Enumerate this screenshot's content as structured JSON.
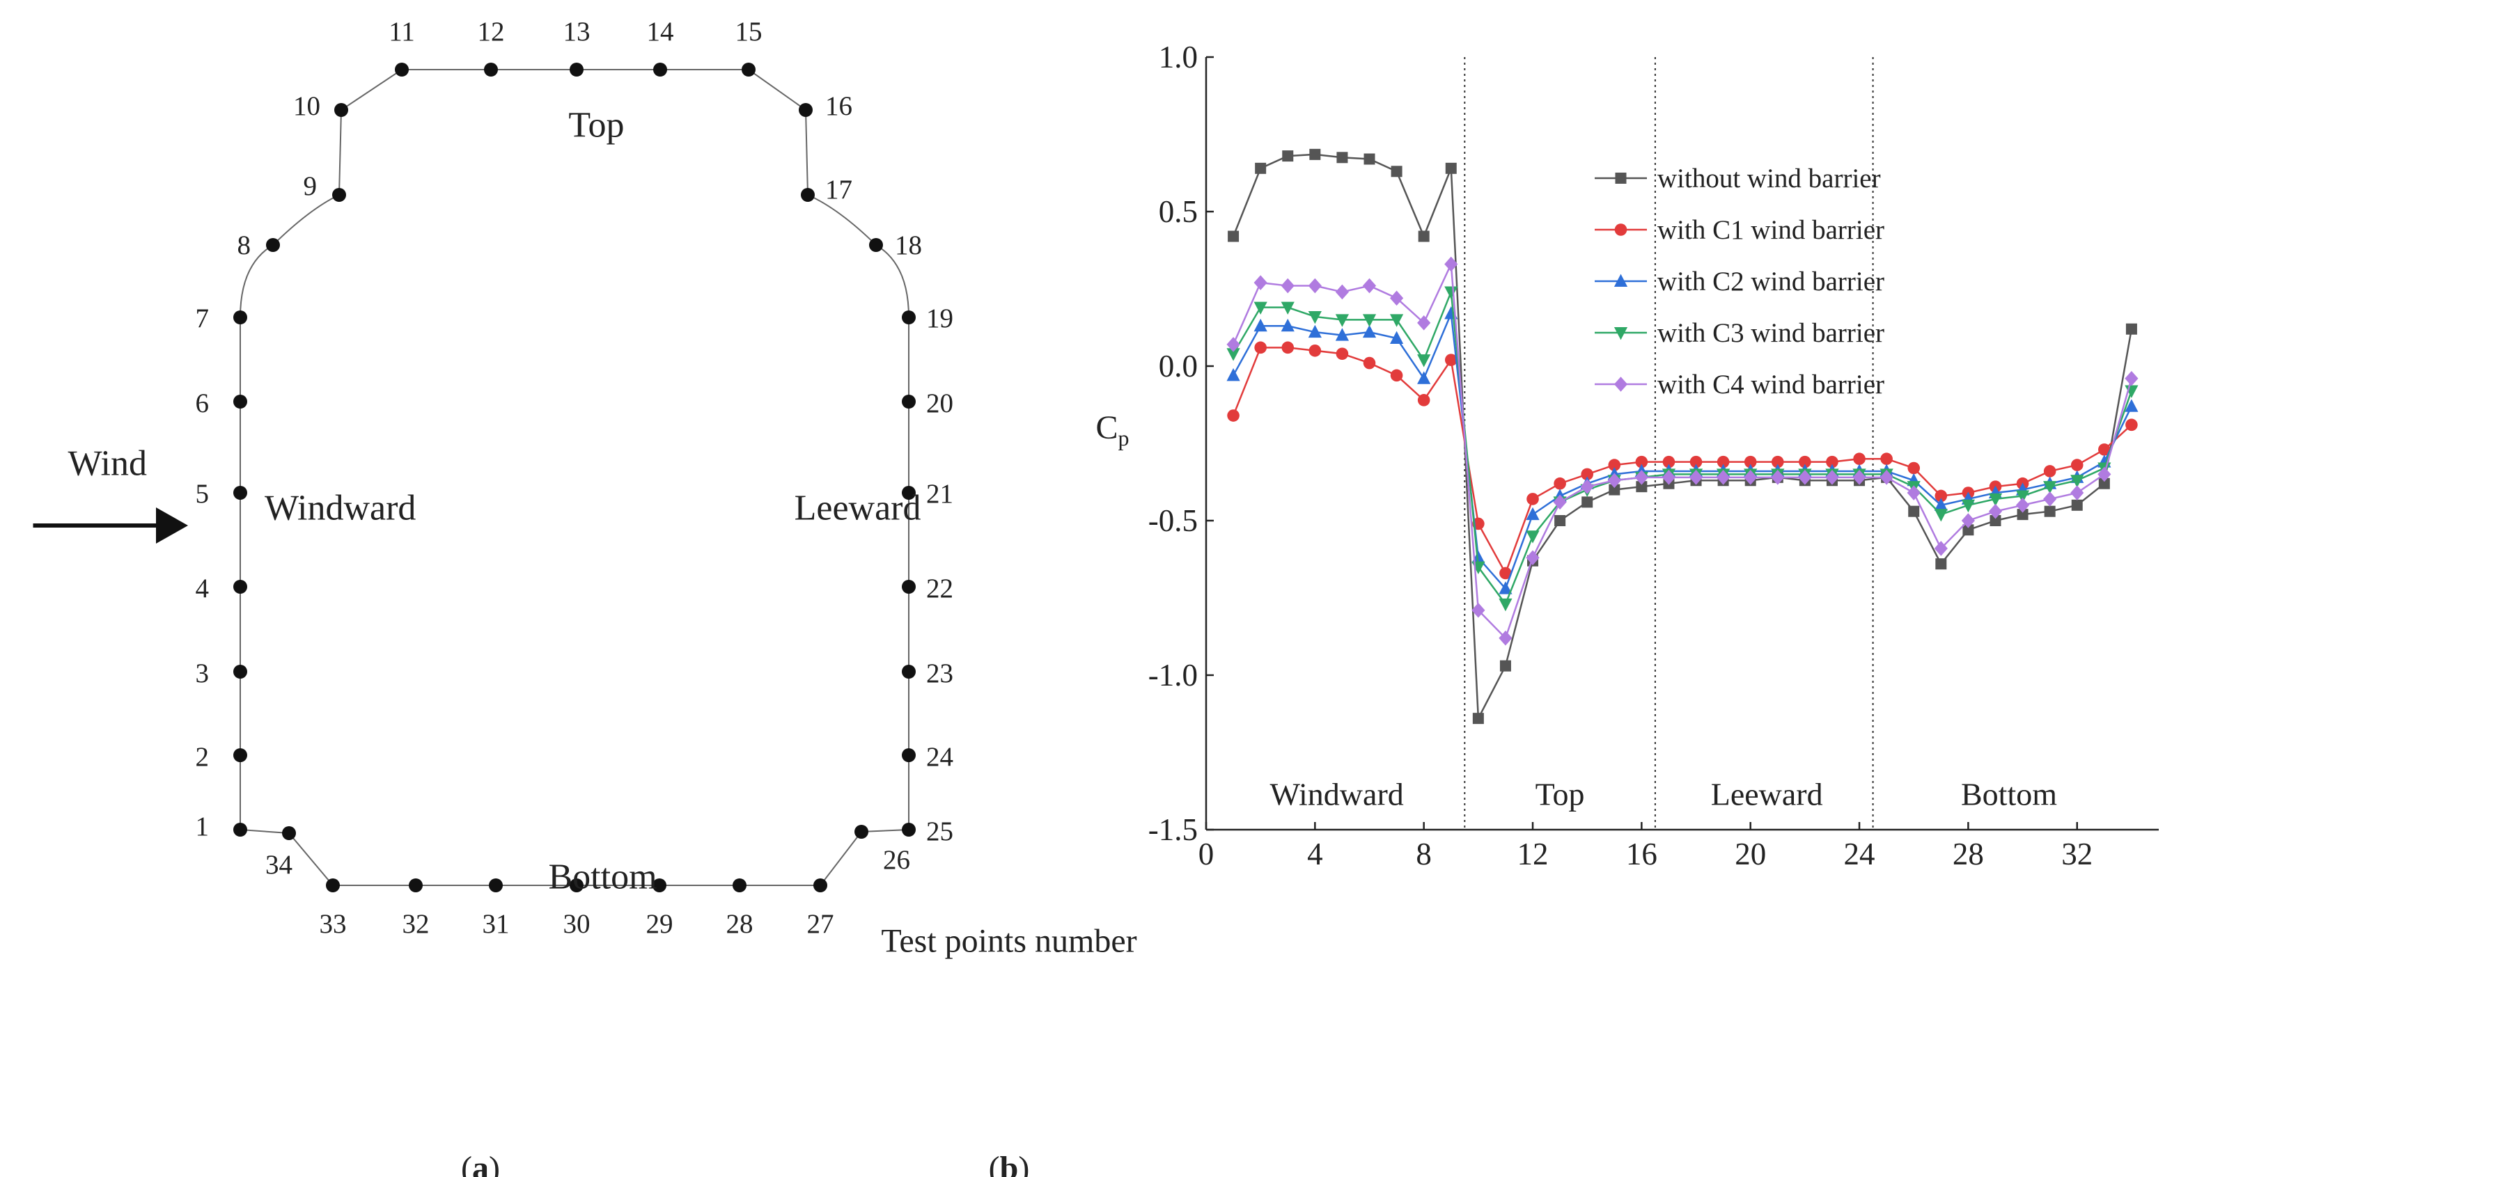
{
  "panel_a": {
    "sides": {
      "top": "Top",
      "bottom": "Bottom",
      "windward": "Windward",
      "leeward": "Leeward",
      "wind": "Wind"
    },
    "points": [
      "1",
      "2",
      "3",
      "4",
      "5",
      "6",
      "7",
      "8",
      "9",
      "10",
      "11",
      "12",
      "13",
      "14",
      "15",
      "16",
      "17",
      "18",
      "19",
      "20",
      "21",
      "22",
      "23",
      "24",
      "25",
      "26",
      "27",
      "28",
      "29",
      "30",
      "31",
      "32",
      "33",
      "34"
    ],
    "wind_arrow_icon": "arrow-right-icon",
    "caption_prefix": "(",
    "caption_letter": "a",
    "caption_suffix": ")"
  },
  "panel_b": {
    "caption_prefix": "(",
    "caption_letter": "b",
    "caption_suffix": ")"
  },
  "chart_data": {
    "type": "line",
    "xlabel": "Test points number",
    "ylabel": "C",
    "ylabel_sub": "p",
    "xlim": [
      0,
      35
    ],
    "ylim": [
      -1.5,
      1.0
    ],
    "xticks": [
      0,
      4,
      8,
      12,
      16,
      20,
      24,
      28,
      32
    ],
    "xtick_labels": [
      "0",
      "4",
      "8",
      "12",
      "16",
      "20",
      "24",
      "28",
      "32"
    ],
    "yticks": [
      1.0,
      0.5,
      0.0,
      -0.5,
      -1.0,
      -1.5
    ],
    "ytick_labels": [
      "1.0",
      "0.5",
      "0.0",
      "-0.5",
      "-1.0",
      "-1.5"
    ],
    "dividers": [
      9.5,
      16.5,
      24.5
    ],
    "regions": [
      {
        "label": "Windward",
        "x": 4.8
      },
      {
        "label": "Top",
        "x": 13.0
      },
      {
        "label": "Leeward",
        "x": 20.6
      },
      {
        "label": "Bottom",
        "x": 29.5
      }
    ],
    "legend_position": "top-right",
    "x": [
      1,
      2,
      3,
      4,
      5,
      6,
      7,
      8,
      9,
      10,
      11,
      12,
      13,
      14,
      15,
      16,
      17,
      18,
      19,
      20,
      21,
      22,
      23,
      24,
      25,
      26,
      27,
      28,
      29,
      30,
      31,
      32,
      33,
      34
    ],
    "series": [
      {
        "name": "without wind barrier",
        "color": "#555555",
        "marker": "square",
        "values": [
          0.42,
          0.64,
          0.68,
          0.685,
          0.675,
          0.67,
          0.63,
          0.42,
          0.64,
          -1.14,
          -0.97,
          -0.63,
          -0.5,
          -0.44,
          -0.4,
          -0.39,
          -0.38,
          -0.37,
          -0.37,
          -0.37,
          -0.36,
          -0.37,
          -0.37,
          -0.37,
          -0.36,
          -0.47,
          -0.64,
          -0.53,
          -0.5,
          -0.48,
          -0.47,
          -0.45,
          -0.38,
          0.12
        ]
      },
      {
        "name": "with C1 wind barrier",
        "color": "#e23b3b",
        "marker": "circle",
        "values": [
          -0.16,
          0.06,
          0.06,
          0.05,
          0.04,
          0.01,
          -0.03,
          -0.11,
          0.02,
          -0.51,
          -0.67,
          -0.43,
          -0.38,
          -0.35,
          -0.32,
          -0.31,
          -0.31,
          -0.31,
          -0.31,
          -0.31,
          -0.31,
          -0.31,
          -0.31,
          -0.3,
          -0.3,
          -0.33,
          -0.42,
          -0.41,
          -0.39,
          -0.38,
          -0.34,
          -0.32,
          -0.27,
          -0.19
        ]
      },
      {
        "name": "with C2 wind barrier",
        "color": "#2e6fd8",
        "marker": "triangle-up",
        "values": [
          -0.03,
          0.13,
          0.13,
          0.11,
          0.1,
          0.11,
          0.09,
          -0.04,
          0.17,
          -0.62,
          -0.72,
          -0.48,
          -0.42,
          -0.38,
          -0.35,
          -0.34,
          -0.34,
          -0.34,
          -0.34,
          -0.34,
          -0.34,
          -0.34,
          -0.34,
          -0.34,
          -0.34,
          -0.37,
          -0.45,
          -0.43,
          -0.41,
          -0.4,
          -0.38,
          -0.36,
          -0.31,
          -0.13
        ]
      },
      {
        "name": "with C3 wind barrier",
        "color": "#2fa866",
        "marker": "triangle-down",
        "values": [
          0.04,
          0.19,
          0.19,
          0.16,
          0.15,
          0.15,
          0.15,
          0.02,
          0.24,
          -0.65,
          -0.77,
          -0.55,
          -0.44,
          -0.4,
          -0.37,
          -0.36,
          -0.35,
          -0.35,
          -0.35,
          -0.35,
          -0.35,
          -0.35,
          -0.35,
          -0.35,
          -0.35,
          -0.39,
          -0.48,
          -0.45,
          -0.43,
          -0.42,
          -0.39,
          -0.37,
          -0.33,
          -0.08
        ]
      },
      {
        "name": "with C4 wind barrier",
        "color": "#b07be0",
        "marker": "diamond",
        "values": [
          0.07,
          0.27,
          0.26,
          0.26,
          0.24,
          0.26,
          0.22,
          0.14,
          0.33,
          -0.79,
          -0.88,
          -0.62,
          -0.44,
          -0.39,
          -0.37,
          -0.36,
          -0.36,
          -0.36,
          -0.36,
          -0.36,
          -0.36,
          -0.36,
          -0.36,
          -0.36,
          -0.36,
          -0.41,
          -0.59,
          -0.5,
          -0.47,
          -0.45,
          -0.43,
          -0.41,
          -0.35,
          -0.04
        ]
      }
    ]
  }
}
